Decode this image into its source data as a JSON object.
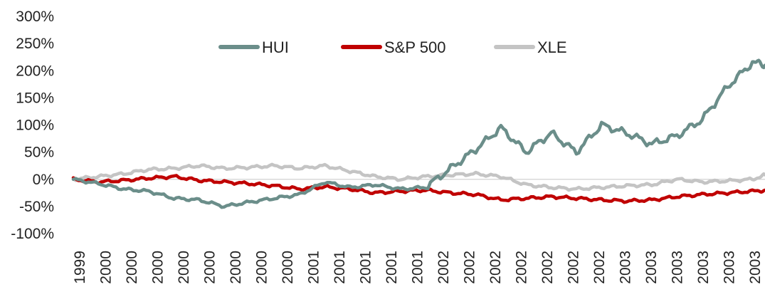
{
  "chart_data": {
    "type": "line",
    "title": "",
    "xlabel": "",
    "ylabel": "",
    "ylim": [
      -100,
      300
    ],
    "yticks": [
      -100,
      -50,
      0,
      50,
      100,
      150,
      200,
      250,
      300
    ],
    "ytick_labels": [
      "-100%",
      "-50%",
      "0%",
      "50%",
      "100%",
      "150%",
      "200%",
      "250%",
      "300%"
    ],
    "xtick_labels": [
      "1999",
      "2000",
      "2000",
      "2000",
      "2000",
      "2000",
      "2000",
      "2000",
      "2000",
      "2001",
      "2001",
      "2001",
      "2001",
      "2001",
      "2002",
      "2002",
      "2002",
      "2002",
      "2002",
      "2002",
      "2002",
      "2003",
      "2003",
      "2003",
      "2003",
      "2003",
      "2003",
      "2003"
    ],
    "grid": false,
    "legend": "top-center",
    "x": [
      0,
      1,
      2,
      3,
      4,
      5,
      6,
      7,
      8,
      9,
      10,
      11,
      12,
      13,
      14,
      15,
      16,
      17,
      18,
      19,
      20,
      21,
      22,
      23,
      24,
      25,
      26,
      27,
      27.5
    ],
    "series": [
      {
        "name": "HUI",
        "color": "#6b8e8a",
        "values": [
          0,
          -8,
          -18,
          -22,
          -35,
          -38,
          -50,
          -42,
          -35,
          -28,
          -5,
          -15,
          -10,
          -18,
          -15,
          20,
          55,
          95,
          50,
          85,
          50,
          100,
          85,
          65,
          80,
          110,
          170,
          215,
          210
        ]
      },
      {
        "name": "S&P 500",
        "color": "#c00000",
        "values": [
          0,
          -5,
          -2,
          2,
          5,
          -2,
          -5,
          -8,
          -12,
          -18,
          -14,
          -18,
          -25,
          -22,
          -20,
          -25,
          -28,
          -38,
          -35,
          -32,
          -35,
          -38,
          -40,
          -38,
          -32,
          -28,
          -25,
          -22,
          -20
        ]
      },
      {
        "name": "XLE",
        "color": "#c4c4c4",
        "values": [
          0,
          5,
          10,
          18,
          20,
          25,
          20,
          22,
          25,
          20,
          25,
          15,
          5,
          0,
          5,
          8,
          10,
          5,
          -10,
          -15,
          -18,
          -15,
          -12,
          -10,
          0,
          -5,
          -3,
          0,
          8
        ]
      }
    ]
  }
}
